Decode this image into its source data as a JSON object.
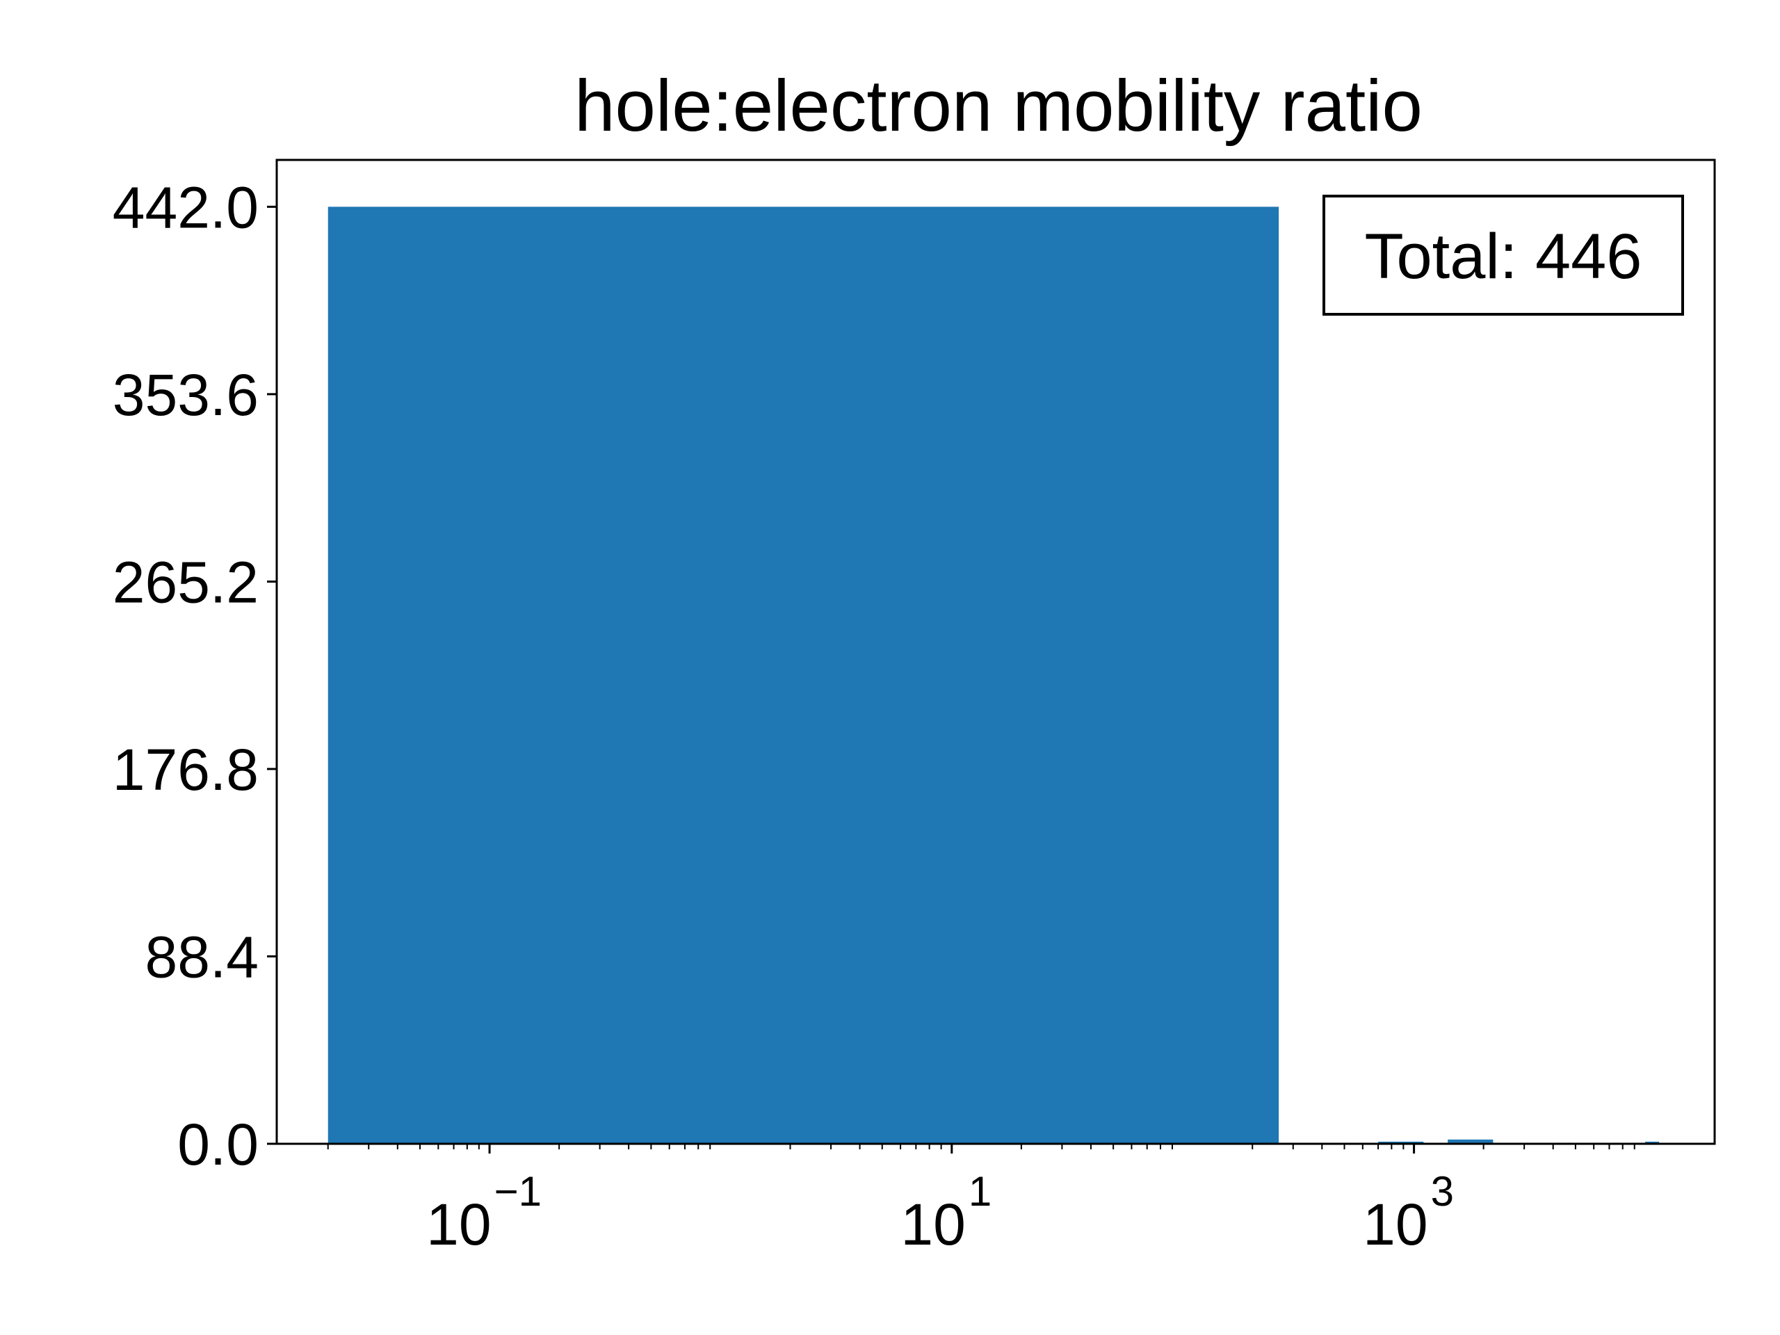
{
  "chart_data": {
    "type": "bar",
    "title": "hole:electron mobility ratio",
    "xlabel": "",
    "ylabel": "",
    "x_scale": "log",
    "xlim": [
      0.012,
      20000
    ],
    "ylim": [
      0,
      464.1
    ],
    "grid": false,
    "color": "#1f77b4",
    "y_ticks": [
      "0.0",
      "88.4",
      "176.8",
      "265.2",
      "353.6",
      "442.0"
    ],
    "x_ticks": [
      {
        "value": 0.1,
        "base": "10",
        "exp": "−1"
      },
      {
        "value": 10,
        "base": "10",
        "exp": "1"
      },
      {
        "value": 1000,
        "base": "10",
        "exp": "3"
      }
    ],
    "bins": [
      {
        "x0": 0.02,
        "x1": 260,
        "value": 442
      },
      {
        "x0": 700,
        "x1": 1100,
        "value": 1
      },
      {
        "x0": 1400,
        "x1": 2200,
        "value": 2
      },
      {
        "x0": 10000,
        "x1": 11500,
        "value": 1
      }
    ],
    "annotation": {
      "text": "Total: 446",
      "placement": "top-right"
    }
  }
}
